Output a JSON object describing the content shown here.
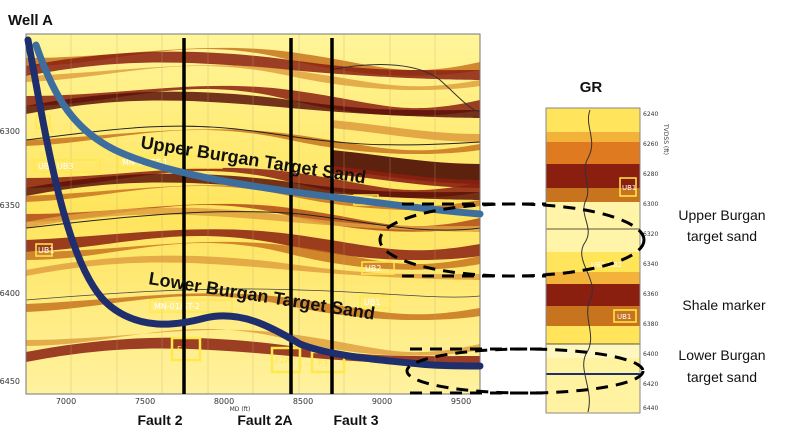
{
  "title": "Well A",
  "gr_title": "GR",
  "left_axis_ticks": [
    "6300",
    "6350",
    "6400",
    "6450"
  ],
  "bottom_axis_ticks": [
    "7000",
    "7500",
    "8000",
    "8500",
    "9000",
    "9500"
  ],
  "bottom_axis_label": "MD (ft)",
  "gr_depth_ticks": [
    "6240",
    "6260",
    "6280",
    "6300",
    "6320",
    "6340",
    "6360",
    "6380",
    "6400",
    "6420",
    "6440"
  ],
  "gr_axis_label": "TVDSS (ft)",
  "faults": [
    "Fault 2",
    "Fault 2A",
    "Fault 3"
  ],
  "section_labels": {
    "upper_target": "Upper Burgan Target Sand",
    "lower_target": "Lower Burgan Target Sand"
  },
  "right_labels": {
    "upper_sand_line1": "Upper Burgan",
    "upper_sand_line2": "target sand",
    "shale_marker": "Shale marker",
    "lower_sand_line1": "Lower Burgan",
    "lower_sand_line2": "target sand"
  },
  "small_tags": {
    "ub2_ub3": "UB2 UB3",
    "mn_a": "MN-01/ST-1",
    "mn_b": "MN-01/ST-2",
    "ub2_right": "UB2",
    "ub3_right": "UB3",
    "ub1_left": "UB1",
    "ub1_mid": "UB1",
    "gr_ub1_top": "UB1",
    "gr_ub1_mid": "UB1 UB2",
    "gr_ub1_low": "UB1",
    "box_f2": "F2",
    "box_f2a": "F2A",
    "box_f3": "F3"
  },
  "colors": {
    "upper_wellpath": "#3d6e9e",
    "lower_wellpath": "#1f2f6e",
    "fault": "#000000",
    "tag_yellow": "#ffe94a"
  }
}
